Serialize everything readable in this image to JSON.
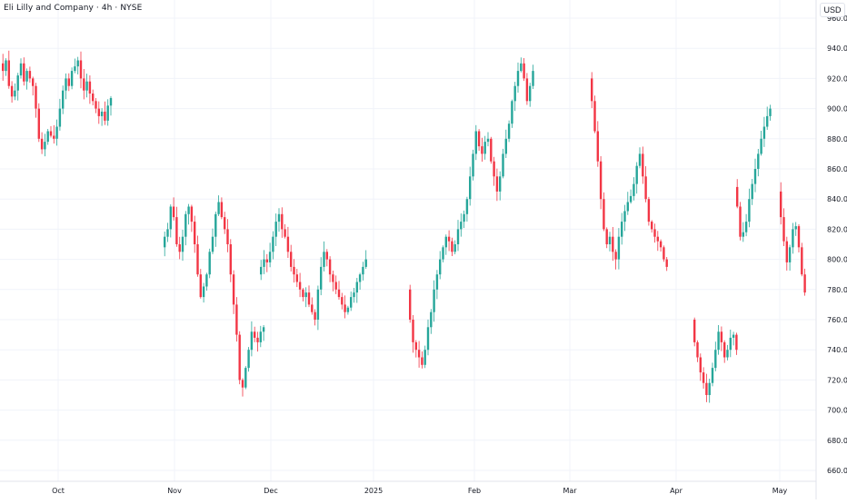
{
  "header": {
    "title": "Eli Lilly and Company · 4h · NYSE",
    "currency": "USD"
  },
  "colors": {
    "up": "#26a69a",
    "down": "#f23645",
    "grid": "#f0f3fa",
    "axis_text": "#131722",
    "axis_line": "#e0e3eb"
  },
  "chart_data": {
    "type": "candlestick",
    "title": "Eli Lilly and Company · 4h · NYSE",
    "currency": "USD",
    "grid": true,
    "x_tick_labels": [
      "Oct",
      "Nov",
      "Dec",
      "2025",
      "Feb",
      "Mar",
      "Apr",
      "May"
    ],
    "y_tick_labels": [
      "660.00",
      "680.00",
      "700.00",
      "720.00",
      "740.00",
      "760.00",
      "780.00",
      "800.00",
      "820.00",
      "840.00",
      "860.00",
      "880.00",
      "900.00",
      "920.00",
      "940.00",
      "960.00"
    ],
    "y_ticks": [
      660,
      680,
      700,
      720,
      740,
      760,
      780,
      800,
      820,
      840,
      860,
      880,
      900,
      920,
      940,
      960
    ],
    "ylim": [
      655,
      966
    ],
    "segments": [
      {
        "start": 930,
        "closes": [
          925,
          932,
          915,
          908,
          912,
          922,
          930,
          918,
          925,
          920,
          915,
          900,
          880,
          873,
          878,
          885,
          882,
          880,
          888,
          900,
          912,
          920,
          915,
          925,
          928,
          932,
          920,
          912,
          918,
          910,
          905,
          900,
          895,
          898,
          892,
          902,
          907
        ]
      },
      {
        "start": 808,
        "closes": [
          815,
          820,
          835,
          828,
          810,
          805,
          815,
          830,
          835,
          825,
          810,
          790,
          775,
          782,
          790,
          805,
          815,
          830,
          838,
          828,
          820,
          810,
          790,
          770,
          750,
          720,
          715,
          728,
          740,
          752,
          748,
          745,
          752,
          755
        ]
      },
      {
        "start": 790,
        "closes": [
          795,
          800,
          798,
          805,
          815,
          825,
          830,
          820,
          815,
          805,
          795,
          790,
          785,
          780,
          775,
          778,
          770,
          765,
          760,
          780,
          795,
          805,
          800,
          790,
          785,
          780,
          775,
          770,
          765,
          768,
          775,
          778,
          785,
          790,
          795,
          800
        ]
      },
      {
        "start": 780,
        "closes": [
          760,
          745,
          740,
          735,
          730,
          740,
          755,
          765,
          780,
          790,
          800,
          808,
          815,
          812,
          805,
          810,
          820,
          825,
          830,
          840,
          855,
          870,
          885,
          875,
          870,
          878,
          880,
          865,
          855,
          845,
          855,
          870,
          880,
          890,
          905,
          915,
          925,
          930,
          920,
          905,
          915,
          925
        ]
      },
      {
        "start": 920,
        "closes": [
          905,
          885,
          865,
          840,
          820,
          810,
          815,
          805,
          800,
          815,
          825,
          832,
          838,
          842,
          850,
          862,
          870,
          855,
          840,
          825,
          820,
          815,
          812,
          808,
          800,
          795
        ]
      },
      {
        "start": 760,
        "closes": [
          745,
          735,
          725,
          718,
          710,
          718,
          728,
          740,
          752,
          745,
          735,
          740,
          748,
          750,
          740
        ]
      },
      {
        "start": 848,
        "closes": [
          835,
          815,
          818,
          825,
          840,
          850,
          860,
          870,
          880,
          888,
          895,
          900
        ]
      },
      {
        "start": 845,
        "closes": [
          828,
          812,
          798,
          808,
          820,
          822,
          808,
          790,
          778
        ]
      }
    ]
  }
}
